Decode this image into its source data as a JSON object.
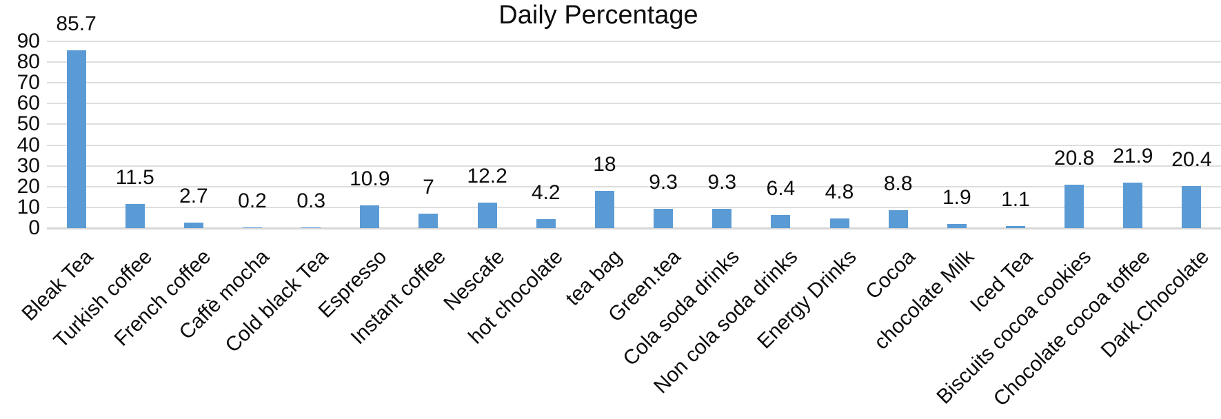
{
  "chart_data": {
    "type": "bar",
    "title": "Daily Percentage",
    "categories": [
      "Bleak Tea",
      "Turkish coffee",
      "French coffee",
      "Caffè mocha",
      "Cold black Tea",
      "Espresso",
      "Instant coffee",
      "Nescafe",
      "hot chocolate",
      "tea bag",
      "Green.tea",
      "Cola soda drinks",
      "Non cola soda drinks",
      "Energy Drinks",
      "Cocoa",
      "chocolate Milk",
      "Iced Tea",
      "Biscuits cocoa cookies",
      "Chocolate cocoa toffee",
      "Dark.Chocolate"
    ],
    "values": [
      85.7,
      11.5,
      2.7,
      0.2,
      0.3,
      10.9,
      7,
      12.2,
      4.2,
      18,
      9.3,
      9.3,
      6.4,
      4.8,
      8.8,
      1.9,
      1.1,
      20.8,
      21.9,
      20.4
    ],
    "value_labels": [
      "85.7",
      "11.5",
      "2.7",
      "0.2",
      "0.3",
      "10.9",
      "7",
      "12.2",
      "4.2",
      "18",
      "9.3",
      "9.3",
      "6.4",
      "4.8",
      "8.8",
      "1.9",
      "1.1",
      "20.8",
      "21.9",
      "20.4"
    ],
    "xlabel": "",
    "ylabel": "",
    "y_ticks": [
      0,
      10,
      20,
      30,
      40,
      50,
      60,
      70,
      80,
      90
    ],
    "ylim": [
      0,
      90
    ],
    "grid": true,
    "legend_position": "none",
    "bar_color": "#5B9BD5",
    "gridline_color": "#DEDEDE",
    "axis_line_color": "#D6D6D6",
    "data_labels_position": "outside-end",
    "category_label_rotation_deg": -45
  }
}
